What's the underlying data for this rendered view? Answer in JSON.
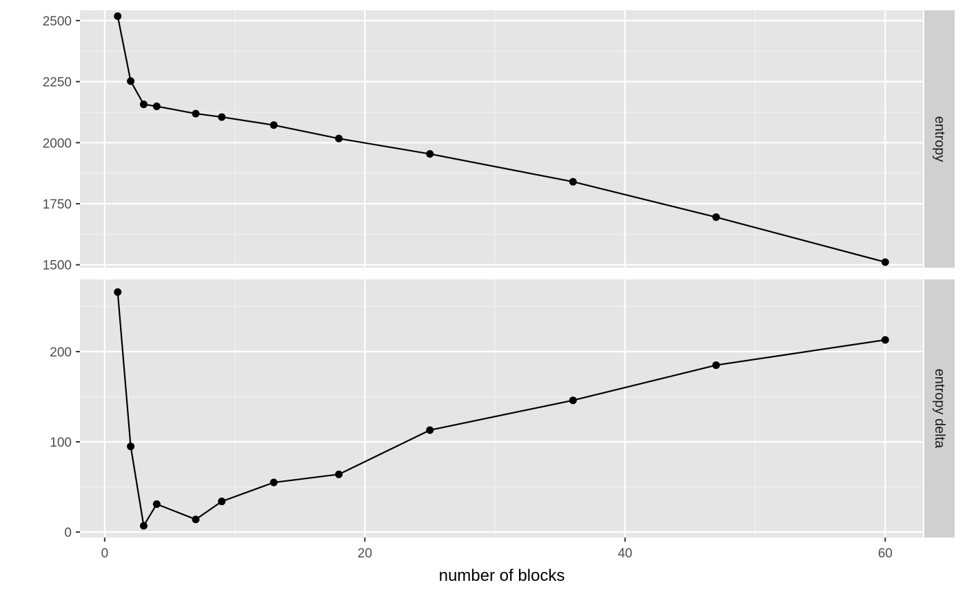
{
  "chart_data": {
    "type": "line",
    "xlabel": "number of blocks",
    "x": [
      1,
      2,
      3,
      4,
      7,
      9,
      13,
      18,
      25,
      36,
      47,
      60
    ],
    "xlim": [
      -1.9,
      62.9
    ],
    "xticks": [
      0,
      20,
      40,
      60
    ],
    "xminor": [
      10,
      30,
      50
    ],
    "grid": true,
    "legend": "none",
    "colors": {
      "panel": "#e5e5e5",
      "strip": "#d0d0d0",
      "line": "#000000"
    },
    "facets": [
      {
        "label": "entropy",
        "y": [
          2518,
          2252,
          2157,
          2149,
          2119,
          2105,
          2072,
          2017,
          1954,
          1840,
          1695,
          1511
        ],
        "ylim": [
          1488,
          2542
        ],
        "yticks": [
          1500,
          1750,
          2000,
          2250,
          2500
        ],
        "yminor": [
          1625,
          1875,
          2125,
          2375
        ]
      },
      {
        "label": "entropy delta",
        "y": [
          266,
          95,
          7,
          31,
          14,
          34,
          55,
          64,
          113,
          146,
          185,
          213
        ],
        "ylim": [
          -6,
          280
        ],
        "yticks": [
          0,
          100,
          200
        ],
        "yminor": [
          50,
          150,
          250
        ]
      }
    ]
  }
}
